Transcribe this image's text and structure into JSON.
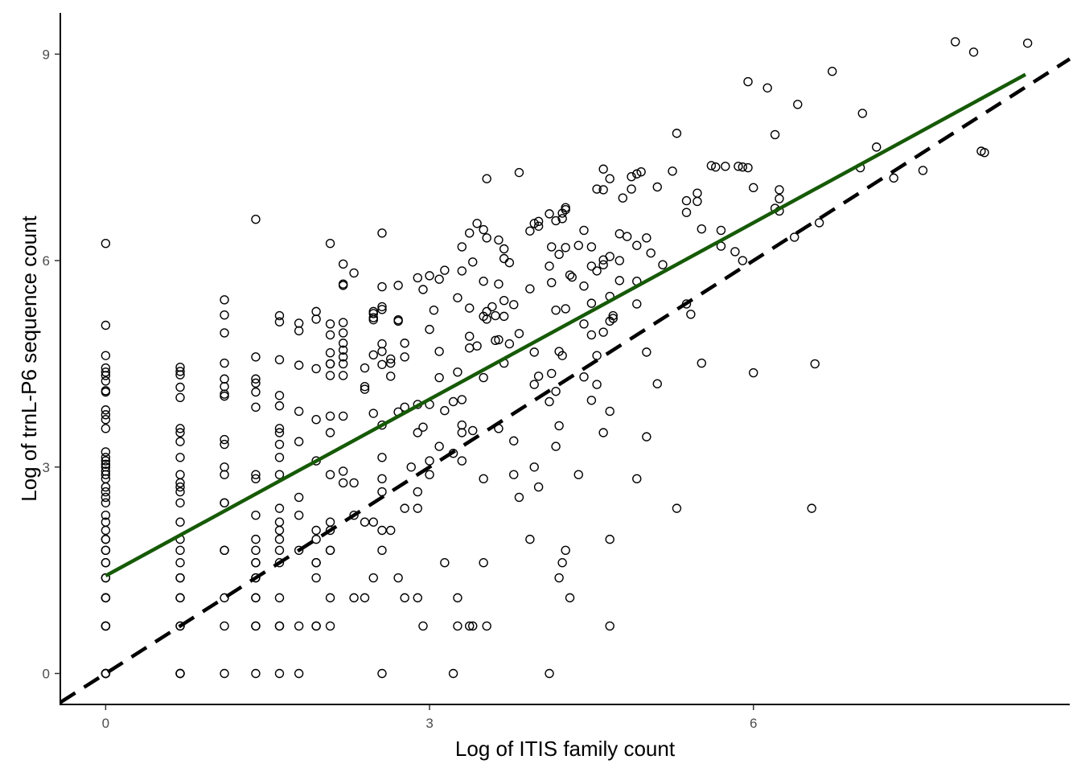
{
  "chart_data": {
    "type": "scatter",
    "title": "",
    "xlabel": "Log of ITIS family count",
    "ylabel": "Log of trnL-P6 sequence count",
    "xlim": [
      -0.42,
      8.93
    ],
    "ylim": [
      -0.45,
      9.6
    ],
    "x_ticks": [
      {
        "value": 0,
        "label": "0"
      },
      {
        "value": 3,
        "label": "3"
      },
      {
        "value": 6,
        "label": "6"
      }
    ],
    "y_ticks": [
      {
        "value": 0,
        "label": "0"
      },
      {
        "value": 3,
        "label": "3"
      },
      {
        "value": 6,
        "label": "6"
      },
      {
        "value": 9,
        "label": "9"
      }
    ],
    "grid": false,
    "fit_line": {
      "color": "#165a06",
      "x_start": 0,
      "x_end": 8.52,
      "intercept": 1.42,
      "slope": 0.855
    },
    "reference_line": {
      "color": "#000000",
      "style": "dashed",
      "intercept": 0,
      "slope": 1
    },
    "points": [
      [
        0,
        0
      ],
      [
        0,
        0
      ],
      [
        0,
        0
      ],
      [
        0,
        0
      ],
      [
        0,
        0.69
      ],
      [
        0,
        0.69
      ],
      [
        0,
        0.69
      ],
      [
        0,
        1.1
      ],
      [
        0,
        1.1
      ],
      [
        0,
        1.1
      ],
      [
        0,
        1.39
      ],
      [
        0,
        1.39
      ],
      [
        0,
        1.61
      ],
      [
        0,
        1.61
      ],
      [
        0,
        1.79
      ],
      [
        0,
        1.79
      ],
      [
        0,
        1.95
      ],
      [
        0,
        1.95
      ],
      [
        0,
        2.08
      ],
      [
        0,
        2.2
      ],
      [
        0,
        2.3
      ],
      [
        0,
        2.48
      ],
      [
        0,
        2.56
      ],
      [
        0,
        2.64
      ],
      [
        0,
        2.71
      ],
      [
        0,
        2.83
      ],
      [
        0,
        2.89
      ],
      [
        0,
        2.94
      ],
      [
        0,
        3.0
      ],
      [
        0,
        3.04
      ],
      [
        0,
        3.09
      ],
      [
        0,
        3.14
      ],
      [
        0,
        3.22
      ],
      [
        0,
        3.56
      ],
      [
        0,
        3.69
      ],
      [
        0,
        3.76
      ],
      [
        0,
        3.83
      ],
      [
        0,
        4.09
      ],
      [
        0,
        4.11
      ],
      [
        0,
        4.25
      ],
      [
        0,
        4.33
      ],
      [
        0,
        4.38
      ],
      [
        0,
        4.44
      ],
      [
        0,
        4.62
      ],
      [
        0,
        5.06
      ],
      [
        0,
        6.25
      ],
      [
        0.69,
        0
      ],
      [
        0.69,
        0
      ],
      [
        0.69,
        0
      ],
      [
        0.69,
        0.69
      ],
      [
        0.69,
        0.69
      ],
      [
        0.69,
        1.1
      ],
      [
        0.69,
        1.1
      ],
      [
        0.69,
        1.39
      ],
      [
        0.69,
        1.39
      ],
      [
        0.69,
        1.61
      ],
      [
        0.69,
        1.79
      ],
      [
        0.69,
        1.95
      ],
      [
        0.69,
        2.2
      ],
      [
        0.69,
        2.48
      ],
      [
        0.69,
        2.64
      ],
      [
        0.69,
        2.71
      ],
      [
        0.69,
        2.77
      ],
      [
        0.69,
        2.89
      ],
      [
        0.69,
        3.14
      ],
      [
        0.69,
        3.37
      ],
      [
        0.69,
        3.5
      ],
      [
        0.69,
        3.56
      ],
      [
        0.69,
        4.01
      ],
      [
        0.69,
        4.16
      ],
      [
        0.69,
        4.34
      ],
      [
        0.69,
        4.39
      ],
      [
        0.69,
        4.45
      ],
      [
        1.1,
        0
      ],
      [
        1.1,
        0.69
      ],
      [
        1.1,
        1.1
      ],
      [
        1.1,
        1.79
      ],
      [
        1.1,
        1.79
      ],
      [
        1.1,
        2.48
      ],
      [
        1.1,
        2.48
      ],
      [
        1.1,
        2.89
      ],
      [
        1.1,
        3.0
      ],
      [
        1.1,
        3.33
      ],
      [
        1.1,
        3.4
      ],
      [
        1.1,
        4.03
      ],
      [
        1.1,
        4.06
      ],
      [
        1.1,
        4.17
      ],
      [
        1.1,
        4.28
      ],
      [
        1.1,
        4.51
      ],
      [
        1.1,
        4.95
      ],
      [
        1.1,
        5.21
      ],
      [
        1.1,
        5.43
      ],
      [
        1.39,
        0
      ],
      [
        1.39,
        0.69
      ],
      [
        1.39,
        0.69
      ],
      [
        1.39,
        1.1
      ],
      [
        1.39,
        1.1
      ],
      [
        1.39,
        1.39
      ],
      [
        1.39,
        1.39
      ],
      [
        1.39,
        1.61
      ],
      [
        1.39,
        1.61
      ],
      [
        1.39,
        1.79
      ],
      [
        1.39,
        1.95
      ],
      [
        1.39,
        2.3
      ],
      [
        1.39,
        2.83
      ],
      [
        1.39,
        2.89
      ],
      [
        1.39,
        3.87
      ],
      [
        1.39,
        4.09
      ],
      [
        1.39,
        4.22
      ],
      [
        1.39,
        4.28
      ],
      [
        1.39,
        4.6
      ],
      [
        1.39,
        6.6
      ],
      [
        1.61,
        0
      ],
      [
        1.61,
        0.69
      ],
      [
        1.61,
        0.69
      ],
      [
        1.61,
        1.1
      ],
      [
        1.61,
        1.61
      ],
      [
        1.61,
        1.79
      ],
      [
        1.61,
        1.95
      ],
      [
        1.61,
        2.08
      ],
      [
        1.61,
        2.2
      ],
      [
        1.61,
        2.4
      ],
      [
        1.61,
        2.89
      ],
      [
        1.61,
        3.14
      ],
      [
        1.61,
        3.33
      ],
      [
        1.61,
        3.5
      ],
      [
        1.61,
        3.56
      ],
      [
        1.61,
        3.89
      ],
      [
        1.61,
        4.04
      ],
      [
        1.61,
        4.56
      ],
      [
        1.61,
        5.11
      ],
      [
        1.61,
        5.2
      ],
      [
        1.79,
        0
      ],
      [
        1.79,
        0.69
      ],
      [
        1.79,
        1.79
      ],
      [
        1.79,
        2.3
      ],
      [
        1.79,
        2.56
      ],
      [
        1.79,
        3.37
      ],
      [
        1.79,
        3.81
      ],
      [
        1.79,
        4.48
      ],
      [
        1.79,
        4.98
      ],
      [
        1.79,
        5.09
      ],
      [
        1.95,
        0.69
      ],
      [
        1.95,
        0.69
      ],
      [
        1.95,
        1.39
      ],
      [
        1.95,
        1.61
      ],
      [
        1.95,
        1.61
      ],
      [
        1.95,
        1.95
      ],
      [
        1.95,
        2.08
      ],
      [
        1.95,
        3.09
      ],
      [
        1.95,
        3.69
      ],
      [
        1.95,
        4.43
      ],
      [
        1.95,
        5.15
      ],
      [
        1.95,
        5.26
      ],
      [
        2.08,
        0.69
      ],
      [
        2.08,
        1.1
      ],
      [
        2.08,
        1.79
      ],
      [
        2.08,
        1.79
      ],
      [
        2.08,
        2.08
      ],
      [
        2.08,
        2.2
      ],
      [
        2.08,
        2.89
      ],
      [
        2.08,
        3.5
      ],
      [
        2.08,
        3.74
      ],
      [
        2.08,
        4.33
      ],
      [
        2.08,
        4.5
      ],
      [
        2.08,
        4.5
      ],
      [
        2.08,
        4.66
      ],
      [
        2.08,
        4.92
      ],
      [
        2.08,
        5.08
      ],
      [
        2.08,
        6.25
      ],
      [
        2.2,
        2.77
      ],
      [
        2.2,
        2.94
      ],
      [
        2.2,
        3.74
      ],
      [
        2.2,
        4.33
      ],
      [
        2.2,
        4.5
      ],
      [
        2.2,
        4.6
      ],
      [
        2.2,
        4.7
      ],
      [
        2.2,
        4.8
      ],
      [
        2.2,
        4.95
      ],
      [
        2.2,
        5.1
      ],
      [
        2.2,
        5.64
      ],
      [
        2.2,
        5.66
      ],
      [
        2.2,
        5.95
      ],
      [
        2.3,
        1.1
      ],
      [
        2.3,
        2.3
      ],
      [
        2.3,
        2.77
      ],
      [
        2.3,
        5.82
      ],
      [
        2.4,
        1.1
      ],
      [
        2.4,
        2.2
      ],
      [
        2.4,
        4.13
      ],
      [
        2.4,
        4.17
      ],
      [
        2.4,
        4.44
      ],
      [
        2.48,
        1.39
      ],
      [
        2.48,
        2.2
      ],
      [
        2.48,
        3.78
      ],
      [
        2.48,
        4.63
      ],
      [
        2.48,
        5.14
      ],
      [
        2.48,
        5.17
      ],
      [
        2.48,
        5.23
      ],
      [
        2.48,
        5.26
      ],
      [
        2.56,
        0
      ],
      [
        2.56,
        1.79
      ],
      [
        2.56,
        2.08
      ],
      [
        2.56,
        2.64
      ],
      [
        2.56,
        2.83
      ],
      [
        2.56,
        3.14
      ],
      [
        2.56,
        3.61
      ],
      [
        2.56,
        4.49
      ],
      [
        2.56,
        4.68
      ],
      [
        2.56,
        4.79
      ],
      [
        2.56,
        5.29
      ],
      [
        2.56,
        5.33
      ],
      [
        2.56,
        5.62
      ],
      [
        2.56,
        6.4
      ],
      [
        2.64,
        2.08
      ],
      [
        2.64,
        4.32
      ],
      [
        2.64,
        4.51
      ],
      [
        2.64,
        4.57
      ],
      [
        2.71,
        1.39
      ],
      [
        2.71,
        3.8
      ],
      [
        2.71,
        5.12
      ],
      [
        2.71,
        5.14
      ],
      [
        2.71,
        5.64
      ],
      [
        2.77,
        1.1
      ],
      [
        2.77,
        2.4
      ],
      [
        2.77,
        3.87
      ],
      [
        2.77,
        4.6
      ],
      [
        2.77,
        4.8
      ],
      [
        2.83,
        3.0
      ],
      [
        2.89,
        1.1
      ],
      [
        2.89,
        2.4
      ],
      [
        2.89,
        2.64
      ],
      [
        2.89,
        3.5
      ],
      [
        2.89,
        3.91
      ],
      [
        2.89,
        5.75
      ],
      [
        2.94,
        0.69
      ],
      [
        2.94,
        3.58
      ],
      [
        2.94,
        5.58
      ],
      [
        3.0,
        2.89
      ],
      [
        3.0,
        3.09
      ],
      [
        3.0,
        3.91
      ],
      [
        3.0,
        5.0
      ],
      [
        3.0,
        5.78
      ],
      [
        3.04,
        5.28
      ],
      [
        3.09,
        3.3
      ],
      [
        3.09,
        4.3
      ],
      [
        3.09,
        4.68
      ],
      [
        3.09,
        5.73
      ],
      [
        3.14,
        1.61
      ],
      [
        3.14,
        3.82
      ],
      [
        3.14,
        5.86
      ],
      [
        3.22,
        0
      ],
      [
        3.22,
        3.2
      ],
      [
        3.22,
        3.95
      ],
      [
        3.26,
        0.69
      ],
      [
        3.26,
        1.1
      ],
      [
        3.26,
        4.38
      ],
      [
        3.26,
        5.46
      ],
      [
        3.3,
        3.09
      ],
      [
        3.3,
        3.5
      ],
      [
        3.3,
        3.61
      ],
      [
        3.3,
        3.98
      ],
      [
        3.3,
        5.85
      ],
      [
        3.3,
        6.2
      ],
      [
        3.37,
        0.69
      ],
      [
        3.37,
        4.73
      ],
      [
        3.37,
        4.9
      ],
      [
        3.37,
        5.31
      ],
      [
        3.37,
        6.4
      ],
      [
        3.4,
        0.69
      ],
      [
        3.4,
        3.53
      ],
      [
        3.4,
        5.98
      ],
      [
        3.44,
        4.76
      ],
      [
        3.44,
        6.54
      ],
      [
        3.5,
        2.83
      ],
      [
        3.5,
        1.61
      ],
      [
        3.5,
        4.3
      ],
      [
        3.5,
        5.19
      ],
      [
        3.5,
        5.7
      ],
      [
        3.5,
        6.45
      ],
      [
        3.53,
        0.69
      ],
      [
        3.53,
        5.15
      ],
      [
        3.53,
        5.26
      ],
      [
        3.53,
        6.33
      ],
      [
        3.53,
        7.19
      ],
      [
        3.58,
        5.33
      ],
      [
        3.61,
        4.84
      ],
      [
        3.61,
        5.2
      ],
      [
        3.64,
        3.56
      ],
      [
        3.64,
        4.85
      ],
      [
        3.64,
        5.66
      ],
      [
        3.64,
        6.3
      ],
      [
        3.69,
        4.51
      ],
      [
        3.69,
        5.19
      ],
      [
        3.69,
        5.42
      ],
      [
        3.69,
        6.03
      ],
      [
        3.69,
        6.17
      ],
      [
        3.74,
        4.79
      ],
      [
        3.74,
        5.97
      ],
      [
        3.78,
        2.89
      ],
      [
        3.78,
        3.38
      ],
      [
        3.78,
        5.36
      ],
      [
        3.83,
        2.56
      ],
      [
        3.83,
        4.94
      ],
      [
        3.83,
        7.28
      ],
      [
        3.93,
        1.95
      ],
      [
        3.93,
        5.59
      ],
      [
        3.93,
        6.43
      ],
      [
        3.97,
        3.0
      ],
      [
        3.97,
        4.2
      ],
      [
        3.97,
        4.67
      ],
      [
        3.97,
        6.54
      ],
      [
        4.01,
        2.71
      ],
      [
        4.01,
        4.32
      ],
      [
        4.01,
        6.5
      ],
      [
        4.01,
        6.57
      ],
      [
        4.11,
        0
      ],
      [
        4.11,
        3.95
      ],
      [
        4.11,
        5.92
      ],
      [
        4.11,
        6.68
      ],
      [
        4.13,
        4.36
      ],
      [
        4.13,
        5.68
      ],
      [
        4.13,
        6.2
      ],
      [
        4.17,
        3.3
      ],
      [
        4.17,
        4.1
      ],
      [
        4.17,
        5.28
      ],
      [
        4.17,
        6.58
      ],
      [
        4.2,
        1.39
      ],
      [
        4.2,
        3.6
      ],
      [
        4.2,
        4.68
      ],
      [
        4.2,
        6.09
      ],
      [
        4.23,
        1.61
      ],
      [
        4.23,
        4.62
      ],
      [
        4.23,
        6.61
      ],
      [
        4.23,
        6.69
      ],
      [
        4.26,
        1.79
      ],
      [
        4.26,
        5.3
      ],
      [
        4.26,
        6.19
      ],
      [
        4.26,
        6.74
      ],
      [
        4.26,
        6.77
      ],
      [
        4.3,
        1.1
      ],
      [
        4.3,
        5.79
      ],
      [
        4.32,
        5.76
      ],
      [
        4.38,
        2.89
      ],
      [
        4.38,
        6.22
      ],
      [
        4.43,
        4.31
      ],
      [
        4.43,
        5.08
      ],
      [
        4.43,
        5.63
      ],
      [
        4.43,
        6.44
      ],
      [
        4.5,
        3.97
      ],
      [
        4.5,
        4.92
      ],
      [
        4.5,
        5.38
      ],
      [
        4.5,
        5.92
      ],
      [
        4.5,
        6.2
      ],
      [
        4.55,
        4.2
      ],
      [
        4.55,
        4.62
      ],
      [
        4.55,
        5.85
      ],
      [
        4.55,
        7.04
      ],
      [
        4.61,
        3.5
      ],
      [
        4.61,
        4.96
      ],
      [
        4.61,
        5.94
      ],
      [
        4.61,
        6.01
      ],
      [
        4.61,
        7.03
      ],
      [
        4.61,
        7.33
      ],
      [
        4.67,
        0.69
      ],
      [
        4.67,
        1.95
      ],
      [
        4.67,
        3.81
      ],
      [
        4.67,
        5.12
      ],
      [
        4.67,
        5.48
      ],
      [
        4.67,
        6.06
      ],
      [
        4.67,
        7.19
      ],
      [
        4.7,
        5.16
      ],
      [
        4.7,
        5.2
      ],
      [
        4.76,
        5.71
      ],
      [
        4.76,
        6.0
      ],
      [
        4.76,
        6.39
      ],
      [
        4.79,
        6.91
      ],
      [
        4.83,
        6.35
      ],
      [
        4.87,
        7.04
      ],
      [
        4.87,
        7.22
      ],
      [
        4.92,
        2.83
      ],
      [
        4.92,
        5.37
      ],
      [
        4.92,
        5.7
      ],
      [
        4.92,
        6.22
      ],
      [
        4.92,
        7.26
      ],
      [
        4.96,
        7.29
      ],
      [
        5.01,
        3.44
      ],
      [
        5.01,
        4.67
      ],
      [
        5.01,
        6.33
      ],
      [
        5.05,
        6.11
      ],
      [
        5.11,
        4.21
      ],
      [
        5.11,
        7.07
      ],
      [
        5.16,
        5.94
      ],
      [
        5.25,
        7.3
      ],
      [
        5.29,
        2.4
      ],
      [
        5.29,
        7.85
      ],
      [
        5.38,
        5.37
      ],
      [
        5.38,
        6.7
      ],
      [
        5.38,
        6.87
      ],
      [
        5.42,
        5.22
      ],
      [
        5.48,
        6.86
      ],
      [
        5.48,
        6.98
      ],
      [
        5.52,
        4.51
      ],
      [
        5.52,
        6.46
      ],
      [
        5.61,
        7.38
      ],
      [
        5.65,
        7.36
      ],
      [
        5.7,
        6.21
      ],
      [
        5.7,
        6.44
      ],
      [
        5.74,
        7.37
      ],
      [
        5.83,
        6.13
      ],
      [
        5.86,
        7.37
      ],
      [
        5.9,
        6.0
      ],
      [
        5.9,
        7.36
      ],
      [
        5.95,
        7.35
      ],
      [
        5.95,
        8.6
      ],
      [
        6.0,
        4.37
      ],
      [
        6.0,
        7.06
      ],
      [
        6.13,
        8.51
      ],
      [
        6.2,
        6.76
      ],
      [
        6.2,
        7.83
      ],
      [
        6.24,
        6.72
      ],
      [
        6.24,
        6.9
      ],
      [
        6.24,
        7.03
      ],
      [
        6.38,
        6.34
      ],
      [
        6.41,
        8.27
      ],
      [
        6.54,
        2.4
      ],
      [
        6.57,
        4.5
      ],
      [
        6.61,
        6.55
      ],
      [
        6.73,
        8.75
      ],
      [
        6.99,
        7.35
      ],
      [
        7.01,
        8.14
      ],
      [
        7.14,
        7.65
      ],
      [
        7.3,
        7.2
      ],
      [
        7.57,
        7.31
      ],
      [
        7.87,
        9.18
      ],
      [
        8.04,
        9.03
      ],
      [
        8.11,
        7.59
      ],
      [
        8.14,
        7.57
      ],
      [
        8.54,
        9.16
      ]
    ]
  }
}
